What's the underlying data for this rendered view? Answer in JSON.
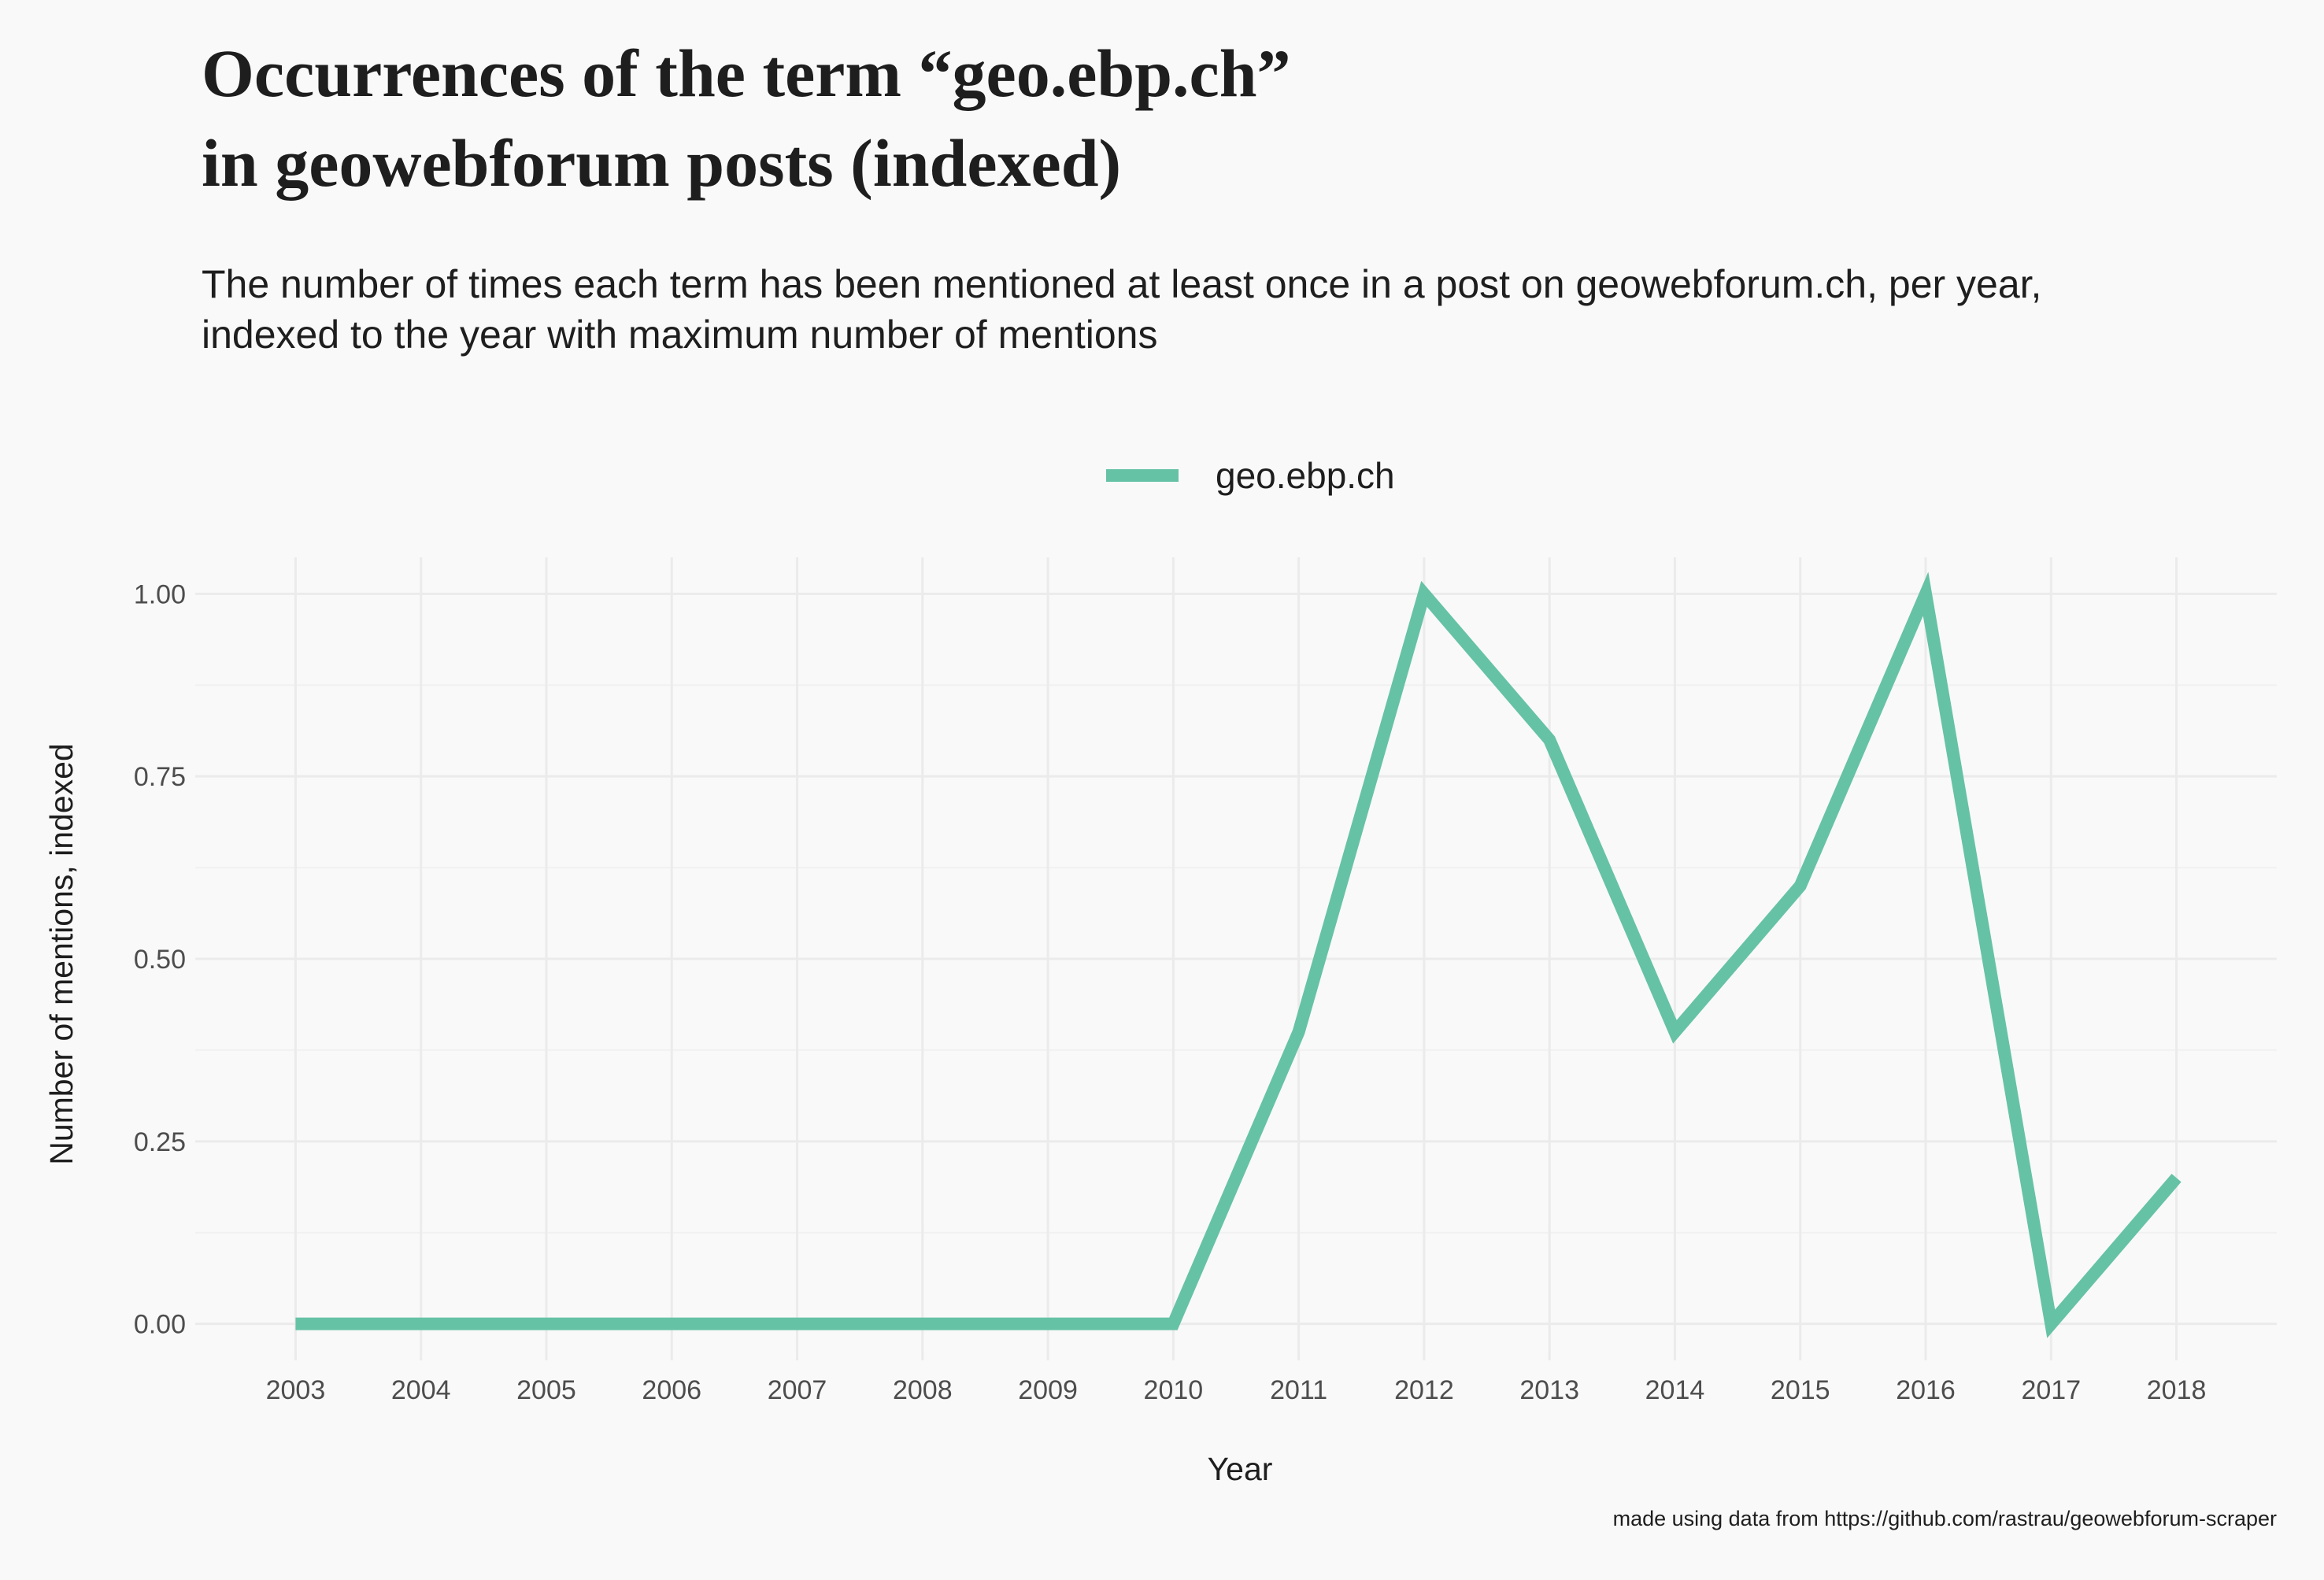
{
  "chart_data": {
    "type": "line",
    "title_lines": [
      "Occurrences of the term “geo.ebp.ch”",
      "in geowebforum posts (indexed)"
    ],
    "subtitle_lines": [
      "The number of times each term has been mentioned at least once in a post on geowebforum.ch, per year,",
      "indexed to the year with maximum number of mentions"
    ],
    "xlabel": "Year",
    "ylabel": "Number of mentions, indexed",
    "caption": "made using data from https://github.com/rastrau/geowebforum-scraper",
    "x": [
      2003,
      2004,
      2005,
      2006,
      2007,
      2008,
      2009,
      2010,
      2011,
      2012,
      2013,
      2014,
      2015,
      2016,
      2017,
      2018
    ],
    "x_tick_labels": [
      "2003",
      "2004",
      "2005",
      "2006",
      "2007",
      "2008",
      "2009",
      "2010",
      "2011",
      "2012",
      "2013",
      "2014",
      "2015",
      "2016",
      "2017",
      "2018"
    ],
    "y_ticks": [
      0,
      0.25,
      0.5,
      0.75,
      1
    ],
    "y_tick_labels": [
      "0.00",
      "0.25",
      "0.50",
      "0.75",
      "1.00"
    ],
    "ylim": [
      -0.05,
      1.05
    ],
    "xlim": [
      2002.2,
      2018.8
    ],
    "grid": true,
    "legend_position": "top",
    "series": [
      {
        "name": "geo.ebp.ch",
        "color": "#66c2a5",
        "values": [
          0,
          0,
          0,
          0,
          0,
          0,
          0,
          0,
          0.4,
          1.0,
          0.8,
          0.4,
          0.6,
          1.0,
          0,
          0.2
        ]
      }
    ]
  }
}
